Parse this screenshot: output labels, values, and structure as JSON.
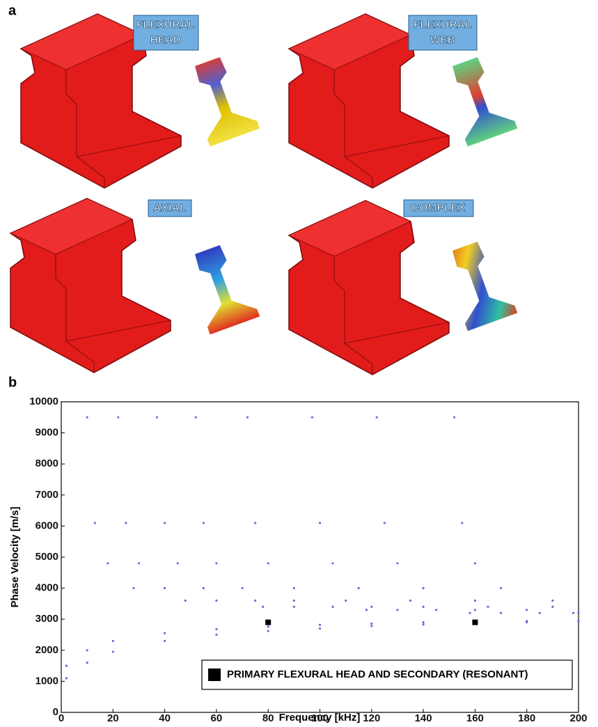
{
  "panel_a": {
    "label": "a",
    "modes": [
      {
        "lines": [
          "FLEXURAL",
          "HEAD"
        ]
      },
      {
        "lines": [
          "FLEXURAL",
          "WEB"
        ]
      },
      {
        "lines": [
          "AXIAL"
        ]
      },
      {
        "lines": [
          "COMPLEX"
        ]
      }
    ]
  },
  "panel_b_label": "b",
  "chart_data": {
    "type": "scatter",
    "x_label": "Frequency [kHz]",
    "y_label": "Phase Velocity [m/s]",
    "xlim": [
      0,
      200
    ],
    "xticks": [
      0,
      20,
      40,
      60,
      80,
      100,
      120,
      140,
      160,
      180,
      200
    ],
    "ylim": [
      0,
      10000
    ],
    "yticks": [
      0,
      1000,
      2000,
      3000,
      4000,
      5000,
      6000,
      7000,
      8000,
      9000,
      10000
    ],
    "series": [
      {
        "name": "PRIMARY FLEXURAL HEAD AND SECONDARY (RESONANT)",
        "color": "#000000",
        "marker": "square",
        "x": [
          80,
          160
        ],
        "values": [
          2900,
          2900
        ]
      },
      {
        "color": "#6b6bd6",
        "marker": "dot",
        "x": [
          2,
          10,
          20,
          40,
          60,
          80,
          100,
          120,
          140,
          160,
          180,
          200
        ],
        "values": [
          1100,
          1600,
          1950,
          2300,
          2500,
          2620,
          2700,
          2780,
          2830,
          2870,
          2900,
          2920
        ]
      },
      {
        "color": "#6b6bd6",
        "marker": "dot",
        "x": [
          2,
          10,
          20,
          40,
          60,
          80,
          100,
          120,
          140,
          160,
          180,
          200
        ],
        "values": [
          1500,
          2000,
          2300,
          2550,
          2680,
          2760,
          2820,
          2860,
          2900,
          2920,
          2940,
          2950
        ]
      },
      {
        "color": "#6b6bd6",
        "marker": "dot",
        "x": [
          10,
          13,
          18,
          28,
          48,
          78,
          118,
          158,
          198
        ],
        "values": [
          9500,
          6100,
          4800,
          4000,
          3600,
          3400,
          3300,
          3200,
          3200
        ]
      },
      {
        "color": "#6b6bd6",
        "marker": "dot",
        "x": [
          22,
          25,
          30,
          40,
          60,
          90,
          130,
          170
        ],
        "values": [
          9500,
          6100,
          4800,
          4000,
          3600,
          3400,
          3300,
          3200
        ]
      },
      {
        "color": "#6b6bd6",
        "marker": "dot",
        "x": [
          37,
          40,
          45,
          55,
          75,
          105,
          145,
          185
        ],
        "values": [
          9500,
          6100,
          4800,
          4000,
          3600,
          3400,
          3300,
          3200
        ]
      },
      {
        "color": "#6b6bd6",
        "marker": "dot",
        "x": [
          52,
          55,
          60,
          70,
          90,
          120,
          160,
          200
        ],
        "values": [
          9500,
          6100,
          4800,
          4000,
          3600,
          3400,
          3300,
          3200
        ]
      },
      {
        "color": "#6b6bd6",
        "marker": "dot",
        "x": [
          72,
          75,
          80,
          90,
          110,
          140,
          180
        ],
        "values": [
          9500,
          6100,
          4800,
          4000,
          3600,
          3400,
          3300
        ]
      },
      {
        "color": "#6b6bd6",
        "marker": "dot",
        "x": [
          97,
          100,
          105,
          115,
          135,
          165
        ],
        "values": [
          9500,
          6100,
          4800,
          4000,
          3600,
          3400
        ]
      },
      {
        "color": "#6b6bd6",
        "marker": "dot",
        "x": [
          122,
          125,
          130,
          140,
          160,
          190
        ],
        "values": [
          9500,
          6100,
          4800,
          4000,
          3600,
          3400
        ]
      },
      {
        "color": "#6b6bd6",
        "marker": "dot",
        "x": [
          152,
          155,
          160,
          170,
          190
        ],
        "values": [
          9500,
          6100,
          4800,
          4000,
          3600
        ]
      }
    ]
  }
}
